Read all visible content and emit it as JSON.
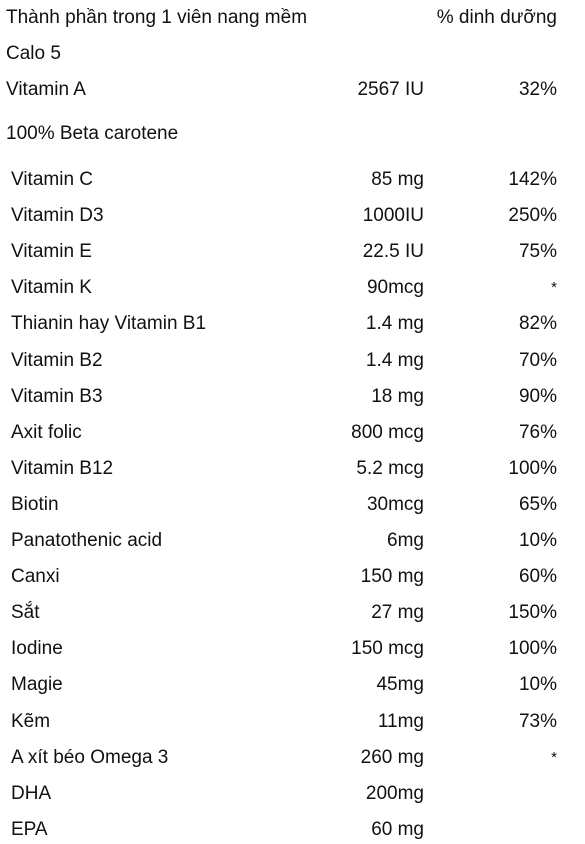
{
  "header": {
    "title": "Thành phần trong 1 viên nang mềm",
    "pct_heading": "% dinh dưỡng"
  },
  "calories": "Calo 5",
  "vitamin_a": {
    "name": "Vitamin A",
    "amount": "2567 IU",
    "pct": "32%"
  },
  "beta_note": "100% Beta carotene",
  "rows": [
    {
      "name": "Vitamin C",
      "amount": "85 mg",
      "pct": "142%"
    },
    {
      "name": "Vitamin D3",
      "amount": "1000IU",
      "pct": "250%"
    },
    {
      "name": "Vitamin E",
      "amount": "22.5 IU",
      "pct": "75%"
    },
    {
      "name": "Vitamin K",
      "amount": "90mcg",
      "pct": "*"
    },
    {
      "name": "Thianin hay Vitamin B1",
      "amount": "1.4 mg",
      "pct": "82%"
    },
    {
      "name": "Vitamin B2",
      "amount": "1.4 mg",
      "pct": "70%"
    },
    {
      "name": "Vitamin B3",
      "amount": "18 mg",
      "pct": "90%"
    },
    {
      "name": "Axit folic",
      "amount": "800 mcg",
      "pct": "76%"
    },
    {
      "name": "Vitamin B12",
      "amount": "5.2 mcg",
      "pct": "100%"
    },
    {
      "name": "Biotin",
      "amount": "30mcg",
      "pct": "65%"
    },
    {
      "name": "Panatothenic acid",
      "amount": "6mg",
      "pct": "10%"
    },
    {
      "name": "Canxi",
      "amount": "150 mg",
      "pct": "60%"
    },
    {
      "name": "Sắt",
      "amount": "27 mg",
      "pct": "150%"
    },
    {
      "name": "Iodine",
      "amount": "150 mcg",
      "pct": "100%"
    },
    {
      "name": "Magie",
      "amount": "45mg",
      "pct": "10%"
    },
    {
      "name": "Kẽm",
      "amount": "11mg",
      "pct": "73%"
    },
    {
      "name": "A xít béo Omega 3",
      "amount": "260 mg",
      "pct": "*"
    },
    {
      "name": "DHA",
      "amount": "200mg",
      "pct": ""
    },
    {
      "name": "EPA",
      "amount": "60 mg",
      "pct": ""
    }
  ]
}
